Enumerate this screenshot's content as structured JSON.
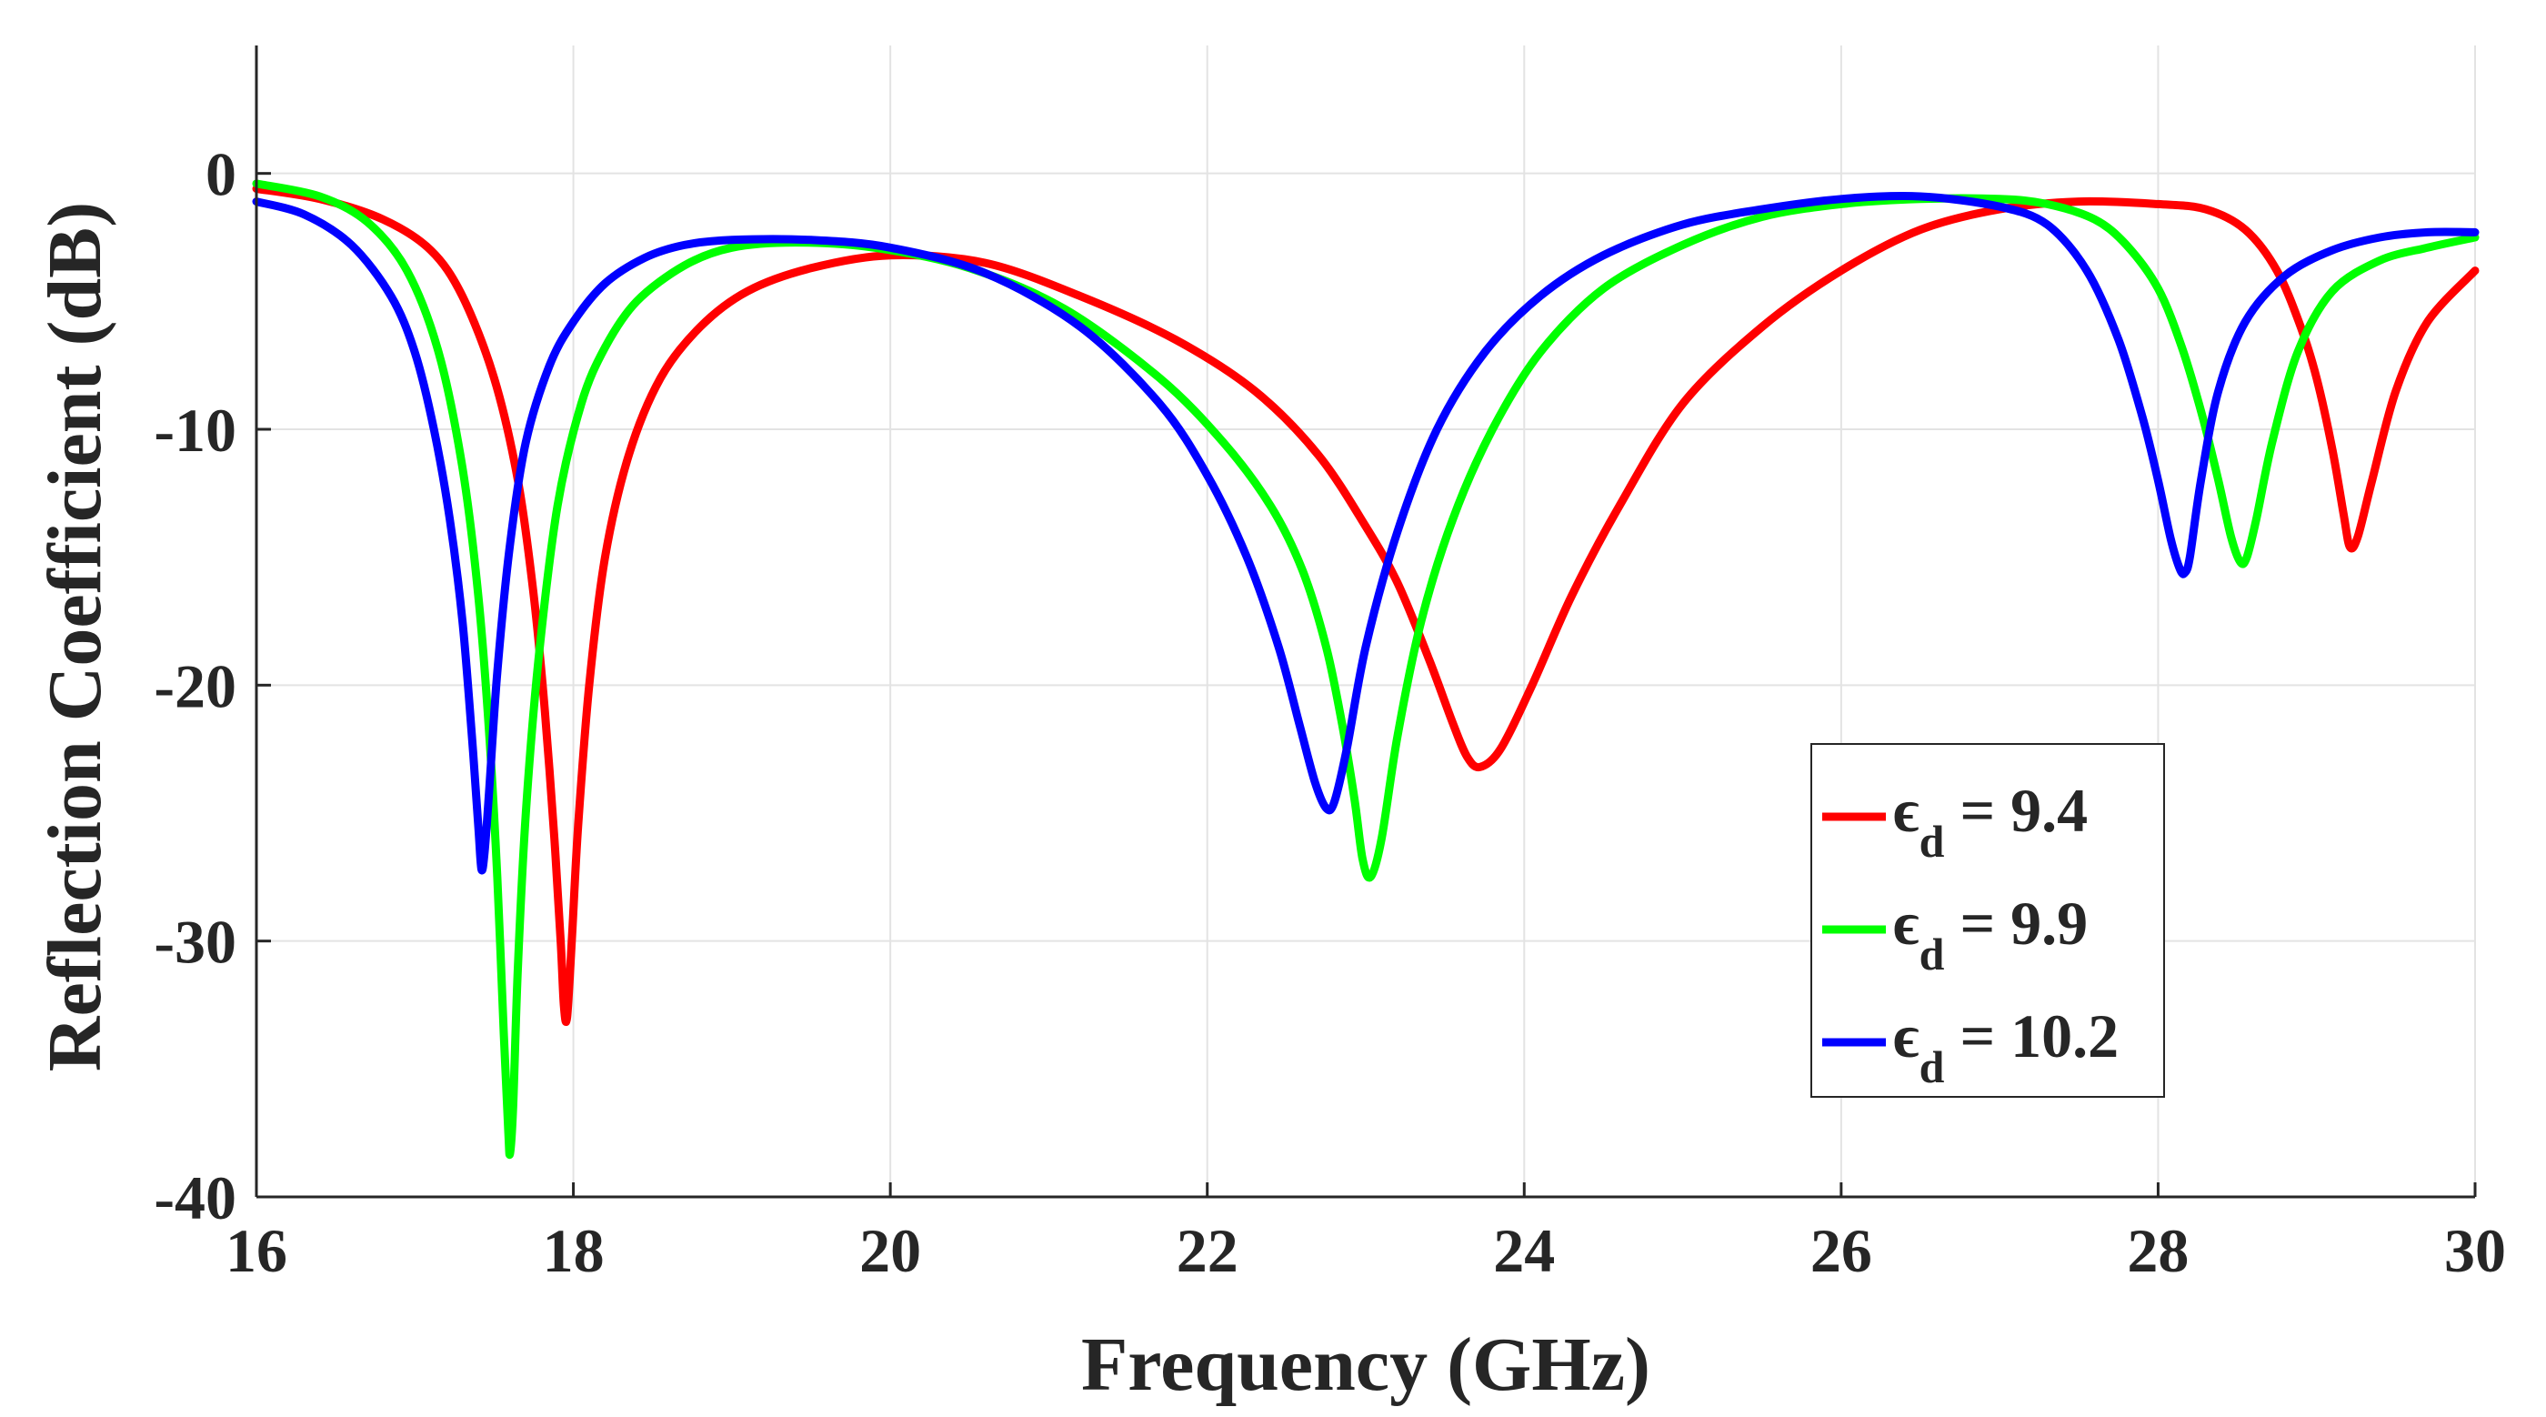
{
  "chart_data": {
    "type": "line",
    "xlabel": "Frequency (GHz)",
    "ylabel": "Reflection Coefficient (dB)",
    "xlim": [
      16,
      30
    ],
    "ylim": [
      -40,
      5
    ],
    "xticks": [
      16,
      18,
      20,
      22,
      24,
      26,
      28,
      30
    ],
    "yticks": [
      0,
      -10,
      -20,
      -30,
      -40
    ],
    "xtick_labels": [
      "16",
      "18",
      "20",
      "22",
      "24",
      "26",
      "28",
      "30"
    ],
    "ytick_labels": [
      "0",
      "-10",
      "-20",
      "-30",
      "-40"
    ],
    "grid": true,
    "legend_position": "bottom-right",
    "series": [
      {
        "name": "ε_d = 9.4",
        "legend_symbol": "ϵ",
        "legend_subscript": "d",
        "legend_value": " = 9.4",
        "color": "#ff0000",
        "x": [
          16.0,
          16.4,
          16.8,
          17.1,
          17.3,
          17.5,
          17.65,
          17.75,
          17.82,
          17.88,
          17.92,
          17.94,
          17.96,
          17.99,
          18.03,
          18.1,
          18.2,
          18.35,
          18.55,
          18.8,
          19.1,
          19.5,
          20.0,
          20.6,
          21.2,
          21.8,
          22.3,
          22.7,
          23.0,
          23.2,
          23.4,
          23.55,
          23.64,
          23.72,
          23.85,
          24.05,
          24.3,
          24.6,
          25.0,
          25.5,
          26.0,
          26.5,
          27.0,
          27.5,
          28.0,
          28.3,
          28.55,
          28.75,
          28.9,
          29.0,
          29.1,
          29.17,
          29.21,
          29.26,
          29.35,
          29.5,
          29.7,
          30.0
        ],
        "y": [
          -0.6,
          -1.0,
          -1.8,
          -3.0,
          -4.8,
          -8.0,
          -12.0,
          -16.5,
          -21.0,
          -26.0,
          -30.0,
          -32.5,
          -33.0,
          -30.0,
          -25.5,
          -20.0,
          -15.0,
          -11.0,
          -8.0,
          -6.0,
          -4.6,
          -3.7,
          -3.2,
          -3.5,
          -4.8,
          -6.5,
          -8.5,
          -11.0,
          -13.8,
          -16.0,
          -19.0,
          -21.5,
          -22.8,
          -23.2,
          -22.5,
          -20.0,
          -16.5,
          -13.0,
          -9.0,
          -6.0,
          -3.8,
          -2.2,
          -1.4,
          -1.1,
          -1.2,
          -1.4,
          -2.2,
          -3.8,
          -6.0,
          -8.0,
          -10.8,
          -13.3,
          -14.6,
          -14.2,
          -12.0,
          -8.5,
          -5.8,
          -3.8
        ]
      },
      {
        "name": "ε_d = 9.9",
        "legend_symbol": "ϵ",
        "legend_subscript": "d",
        "legend_value": " = 9.9",
        "color": "#00ff00",
        "x": [
          16.0,
          16.4,
          16.7,
          16.95,
          17.15,
          17.3,
          17.4,
          17.47,
          17.52,
          17.56,
          17.59,
          17.6,
          17.62,
          17.65,
          17.7,
          17.78,
          17.9,
          18.05,
          18.2,
          18.4,
          18.7,
          19.0,
          19.4,
          19.9,
          20.5,
          21.1,
          21.7,
          22.1,
          22.4,
          22.6,
          22.75,
          22.85,
          22.93,
          22.98,
          23.03,
          23.1,
          23.2,
          23.35,
          23.55,
          23.8,
          24.1,
          24.5,
          25.0,
          25.5,
          26.0,
          26.5,
          27.0,
          27.3,
          27.6,
          27.8,
          28.0,
          28.15,
          28.28,
          28.38,
          28.46,
          28.52,
          28.56,
          28.62,
          28.72,
          28.88,
          29.1,
          29.4,
          29.7,
          30.0
        ],
        "y": [
          -0.4,
          -0.9,
          -1.9,
          -3.8,
          -7.0,
          -11.5,
          -16.5,
          -22.0,
          -27.5,
          -33.5,
          -37.5,
          -38.3,
          -36.5,
          -31.0,
          -25.0,
          -19.0,
          -13.0,
          -9.0,
          -6.8,
          -5.0,
          -3.6,
          -2.9,
          -2.7,
          -2.9,
          -3.7,
          -5.3,
          -8.0,
          -10.5,
          -13.0,
          -15.5,
          -18.5,
          -21.5,
          -24.5,
          -26.8,
          -27.5,
          -26.0,
          -22.0,
          -17.5,
          -13.5,
          -10.0,
          -7.0,
          -4.5,
          -2.8,
          -1.7,
          -1.2,
          -1.0,
          -1.0,
          -1.2,
          -1.8,
          -2.8,
          -4.5,
          -6.8,
          -9.5,
          -12.0,
          -14.2,
          -15.2,
          -15.0,
          -13.5,
          -10.5,
          -7.0,
          -4.6,
          -3.4,
          -2.9,
          -2.5
        ]
      },
      {
        "name": "ε_d = 10.2",
        "legend_symbol": "ϵ",
        "legend_subscript": "d",
        "legend_value": " = 10.2",
        "color": "#0000ff",
        "x": [
          16.0,
          16.3,
          16.6,
          16.85,
          17.0,
          17.12,
          17.22,
          17.3,
          17.36,
          17.4,
          17.42,
          17.44,
          17.47,
          17.52,
          17.6,
          17.7,
          17.85,
          18.0,
          18.2,
          18.45,
          18.7,
          19.0,
          19.5,
          20.0,
          20.6,
          21.2,
          21.7,
          22.0,
          22.25,
          22.45,
          22.58,
          22.68,
          22.75,
          22.8,
          22.88,
          23.0,
          23.2,
          23.45,
          23.75,
          24.1,
          24.5,
          25.0,
          25.5,
          26.0,
          26.5,
          27.0,
          27.3,
          27.55,
          27.75,
          27.9,
          28.0,
          28.08,
          28.14,
          28.17,
          28.2,
          28.27,
          28.38,
          28.55,
          28.8,
          29.1,
          29.4,
          29.7,
          30.0
        ],
        "y": [
          -1.1,
          -1.6,
          -2.8,
          -4.8,
          -7.0,
          -10.0,
          -13.5,
          -17.5,
          -22.0,
          -25.5,
          -27.2,
          -26.5,
          -24.0,
          -19.5,
          -14.5,
          -10.5,
          -7.5,
          -5.8,
          -4.3,
          -3.3,
          -2.8,
          -2.6,
          -2.6,
          -2.9,
          -3.9,
          -6.0,
          -9.0,
          -11.8,
          -15.0,
          -18.5,
          -21.5,
          -23.8,
          -24.8,
          -24.6,
          -22.5,
          -18.5,
          -14.0,
          -10.0,
          -7.0,
          -4.8,
          -3.2,
          -2.0,
          -1.4,
          -1.0,
          -0.9,
          -1.3,
          -2.0,
          -3.8,
          -6.5,
          -9.5,
          -12.0,
          -14.3,
          -15.5,
          -15.6,
          -15.0,
          -12.0,
          -8.5,
          -5.8,
          -4.0,
          -3.0,
          -2.5,
          -2.3,
          -2.3
        ]
      }
    ]
  }
}
